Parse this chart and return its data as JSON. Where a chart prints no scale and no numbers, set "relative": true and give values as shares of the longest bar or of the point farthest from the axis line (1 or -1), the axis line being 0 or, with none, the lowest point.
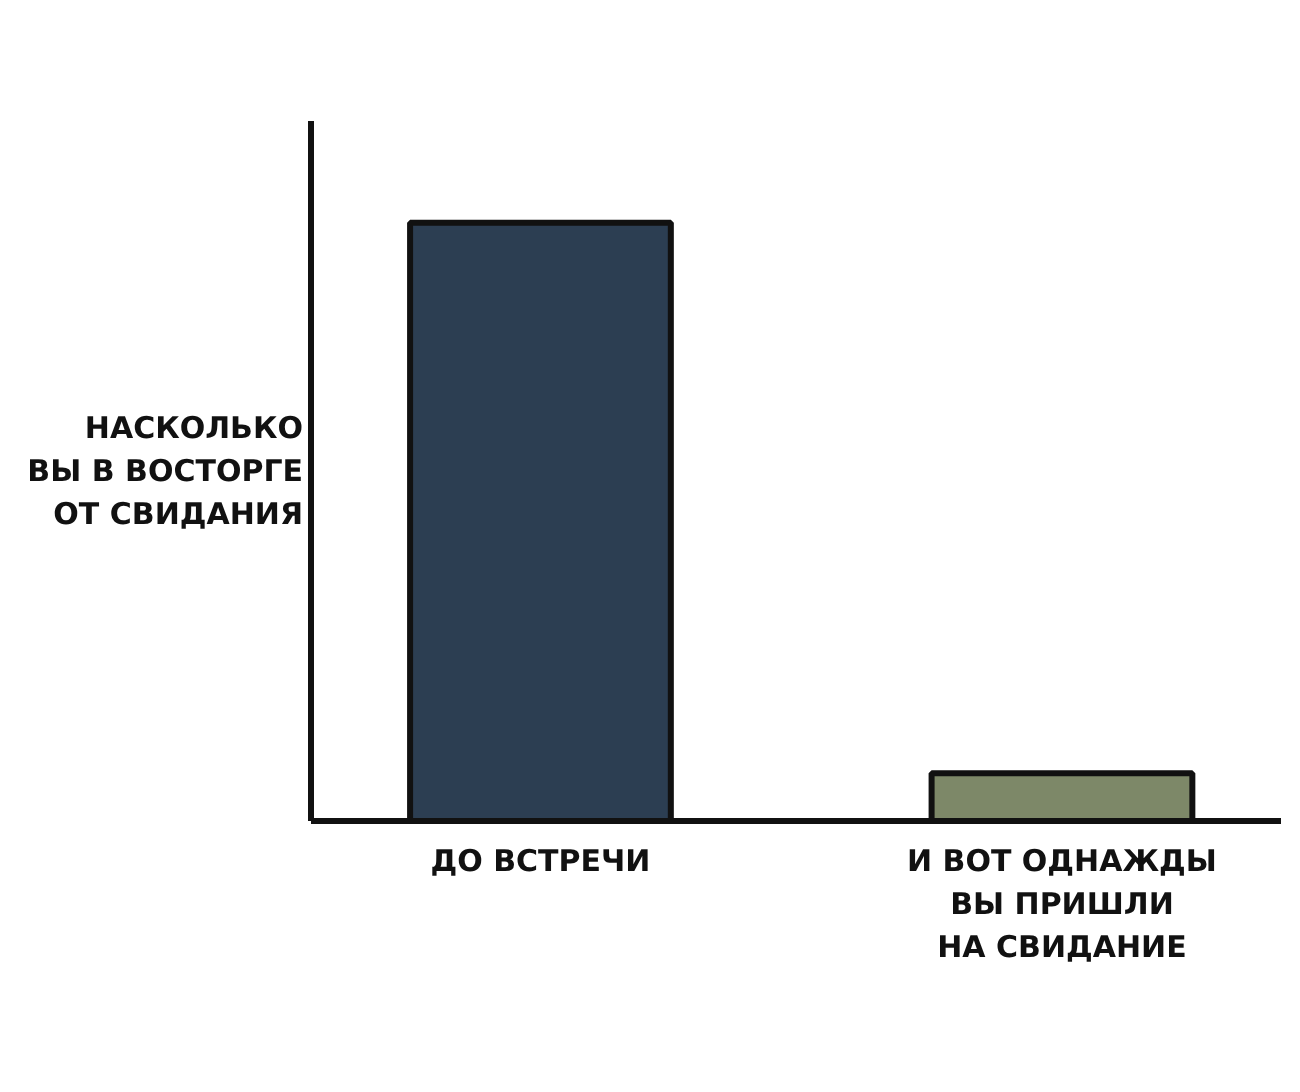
{
  "chart_data": {
    "type": "bar",
    "relative": true,
    "ylabel": "НАСКОЛЬКО\nВЫ В ВОСТОРГЕ\nОТ СВИДАНИЯ",
    "categories": [
      "ДО ВСТРЕЧИ",
      "И ВОТ ОДНАЖДЫ\nВЫ ПРИШЛИ\nНА СВИДАНИЕ"
    ],
    "values": [
      1,
      0.08
    ],
    "colors": [
      "#2c3e52",
      "#7d8868"
    ],
    "grid": false
  }
}
